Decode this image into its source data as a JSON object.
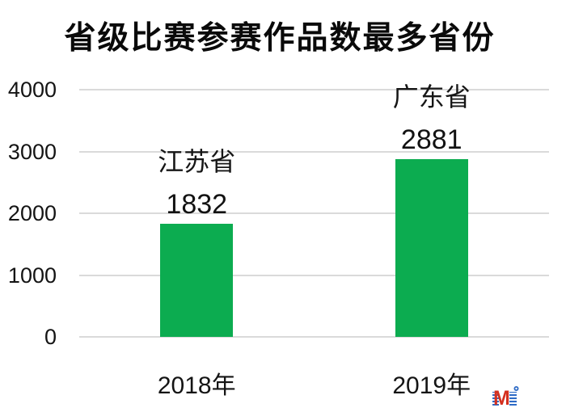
{
  "chart_data": {
    "type": "bar",
    "title": "省级比赛参赛作品数最多省份",
    "categories": [
      "2018年",
      "2019年"
    ],
    "values": [
      1832,
      2881
    ],
    "bar_annotations": [
      {
        "province": "江苏省",
        "value_label": "1832"
      },
      {
        "province": "广东省",
        "value_label": "2881"
      }
    ],
    "xlabel": "",
    "ylabel": "",
    "ylim": [
      0,
      4000
    ],
    "ytick_labels_top_to_bottom": [
      "4000",
      "3000",
      "2000",
      "1000",
      "0"
    ],
    "grid": "horizontal",
    "legend_position": "none",
    "colors": {
      "bar": "#0CAC50",
      "gridline": "#DADADA",
      "text": "#141414",
      "background": "#FFFFFF"
    }
  },
  "watermark": {
    "icon": "m-logo",
    "letter": "M",
    "colors": {
      "red": "#D4301F",
      "blue": "#2E6BC6"
    }
  }
}
